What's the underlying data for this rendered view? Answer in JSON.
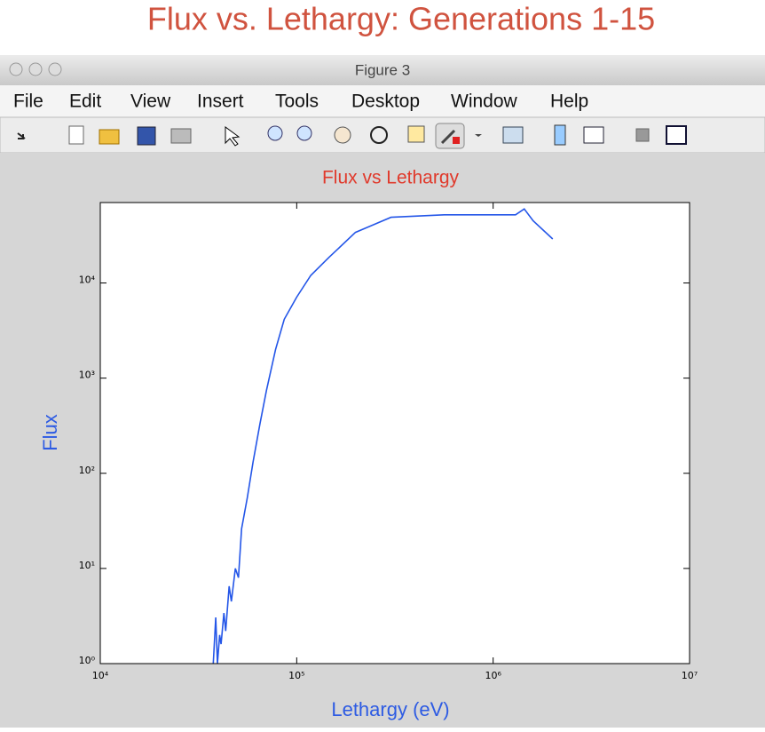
{
  "header": {
    "title": "Flux vs. Lethargy: Generations 1-15"
  },
  "window": {
    "title": "Figure 3",
    "menu": [
      "File",
      "Edit",
      "View",
      "Insert",
      "Tools",
      "Desktop",
      "Window",
      "Help"
    ]
  },
  "chart_data": {
    "type": "line",
    "title": "Flux vs Lethargy",
    "xlabel": "Lethargy (eV)",
    "ylabel": "Flux",
    "x": [
      37600,
      38700,
      39500,
      40500,
      41200,
      42600,
      43500,
      45300,
      46500,
      48700,
      50500,
      52400,
      56000,
      60000,
      65000,
      70100,
      78000,
      86400,
      100000,
      118000,
      146000,
      199000,
      302000,
      564000,
      1300000,
      1440000,
      1600000,
      2010000
    ],
    "values": [
      1,
      3.06,
      1,
      2,
      1.6,
      3.4,
      2.2,
      6.5,
      4.5,
      10,
      8,
      26,
      55,
      132,
      330,
      740,
      2000,
      4150,
      7100,
      12000,
      18600,
      34000,
      49000,
      52000,
      52000,
      60000,
      45000,
      29000
    ],
    "color": "#2456e8",
    "xscale": "log",
    "yscale": "log",
    "xlim": [
      10000,
      10000000
    ],
    "ylim": [
      1,
      70000
    ],
    "xticks": [
      {
        "value": 10000,
        "label": "10⁴"
      },
      {
        "value": 100000,
        "label": "10⁵"
      },
      {
        "value": 1000000,
        "label": "10⁶"
      },
      {
        "value": 10000000,
        "label": "10⁷"
      }
    ],
    "yticks": [
      {
        "value": 1,
        "label": "10⁰"
      },
      {
        "value": 10,
        "label": "10¹"
      },
      {
        "value": 100,
        "label": "10²"
      },
      {
        "value": 1000,
        "label": "10³"
      },
      {
        "value": 10000,
        "label": "10⁴"
      }
    ]
  }
}
